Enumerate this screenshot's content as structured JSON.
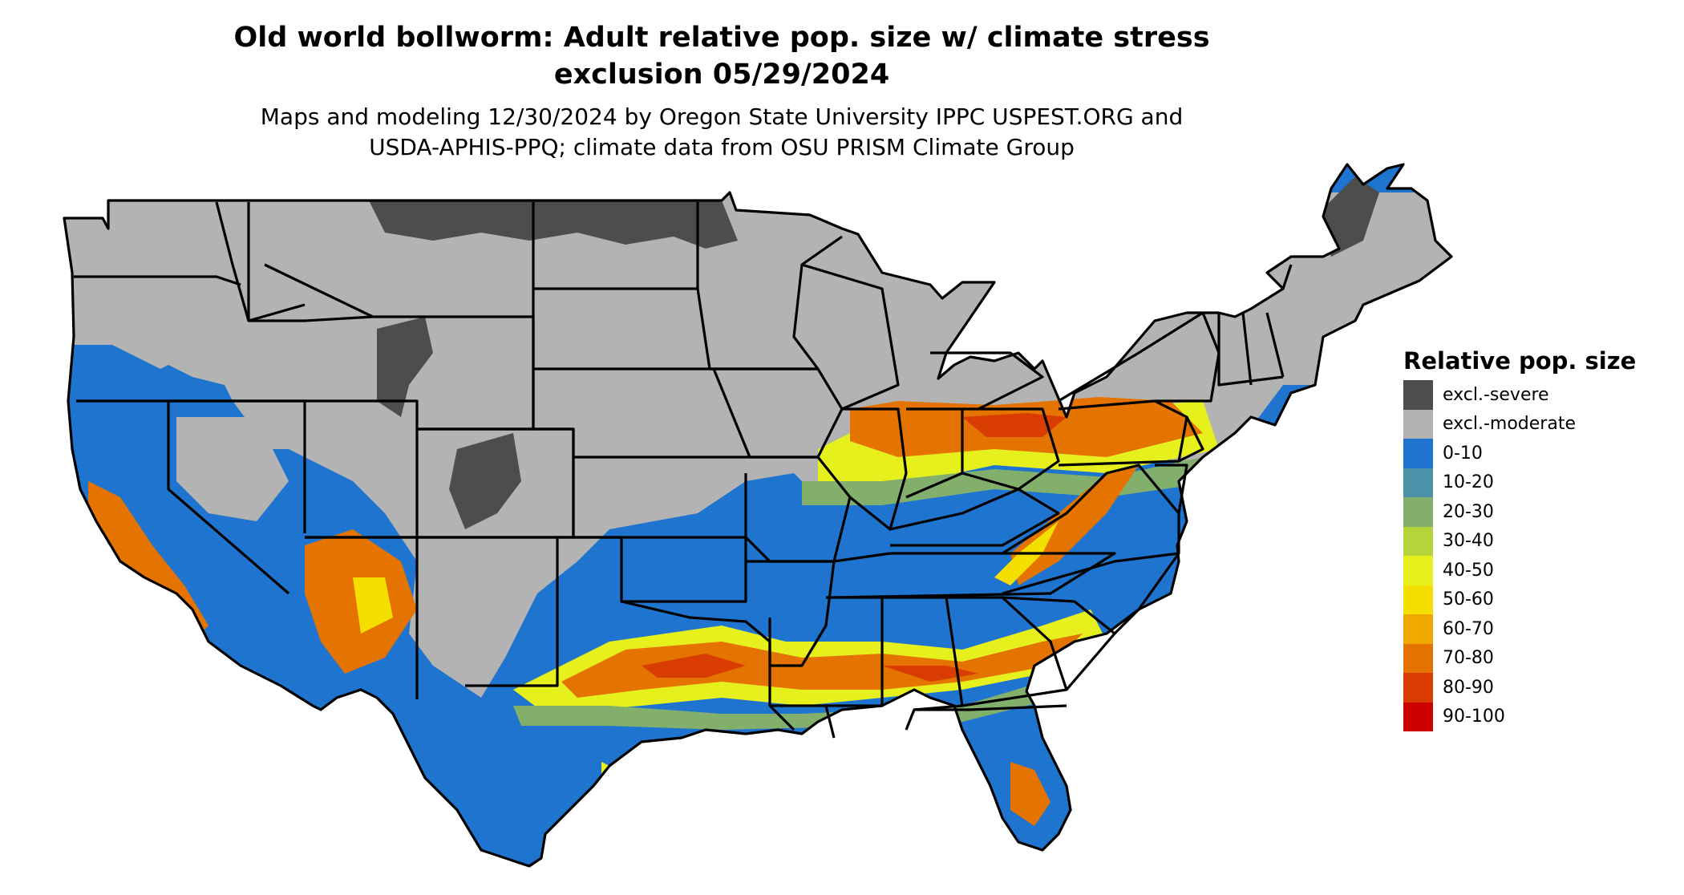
{
  "title_line1": "Old world bollworm: Adult relative pop. size w/ climate stress",
  "title_line2": "exclusion 05/29/2024",
  "subtitle_line1": "Maps and modeling 12/30/2024 by Oregon State University IPPC USPEST.ORG and",
  "subtitle_line2": "USDA-APHIS-PPQ; climate data from OSU PRISM Climate Group",
  "legend": {
    "title": "Relative pop. size",
    "items": [
      {
        "label": "excl.-severe",
        "color": "#4d4d4d"
      },
      {
        "label": "excl.-moderate",
        "color": "#b3b3b3"
      },
      {
        "label": "0-10",
        "color": "#1f74d0"
      },
      {
        "label": "10-20",
        "color": "#4b91a8"
      },
      {
        "label": "20-30",
        "color": "#82b06c"
      },
      {
        "label": "30-40",
        "color": "#b5d43a"
      },
      {
        "label": "40-50",
        "color": "#e6f01c"
      },
      {
        "label": "50-60",
        "color": "#f5df00"
      },
      {
        "label": "60-70",
        "color": "#f0a800"
      },
      {
        "label": "70-80",
        "color": "#e57300"
      },
      {
        "label": "80-90",
        "color": "#d93c00"
      },
      {
        "label": "90-100",
        "color": "#cc0000"
      }
    ]
  }
}
